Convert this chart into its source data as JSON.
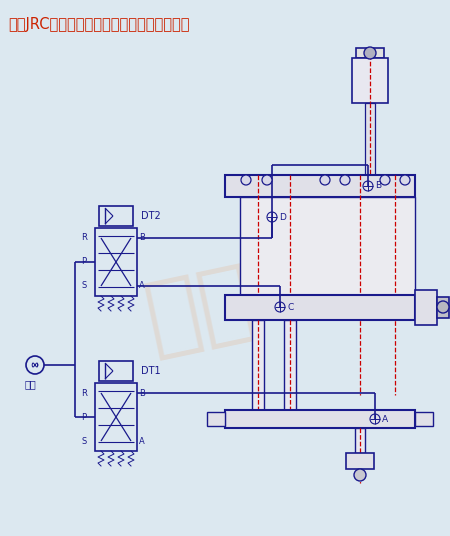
{
  "title": "玖容JRC总行程可调型气液增压缸气路连接图",
  "title_color": "#cc2200",
  "bg_color": "#dce8f0",
  "line_color": "#1a1a8c",
  "cylinder_color": "#1a1a8c",
  "red_dash_color": "#cc0000",
  "figsize": [
    4.5,
    5.36
  ],
  "dpi": 100,
  "watermark": "玖容",
  "watermark_color": "#e8a878",
  "labels": {
    "A": "A",
    "B": "B",
    "C": "C",
    "D": "D",
    "DT1": "DT1",
    "DT2": "DT2",
    "gas": "气源",
    "R": "R",
    "P": "P",
    "S": "S"
  }
}
